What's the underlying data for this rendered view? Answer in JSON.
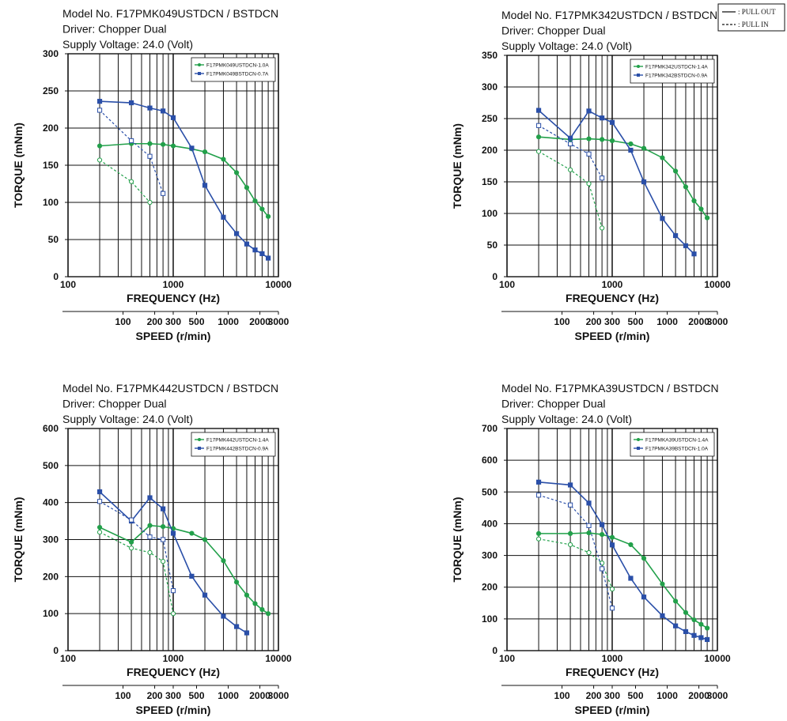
{
  "legend_box": {
    "pull_out": ": PULL OUT",
    "pull_in": ": PULL IN"
  },
  "colors": {
    "green": "#22a04a",
    "blue": "#2a4fa8",
    "grid": "#111111"
  },
  "chart_data": [
    {
      "type": "line",
      "header": [
        "Model No. F17PMK049USTDCN / BSTDCN",
        "Driver: Chopper Dual",
        "Supply Voltage: 24.0 (Volt)"
      ],
      "xlabel": "FREQUENCY (Hz)",
      "x2label": "SPEED (r/min)",
      "ylabel": "TORQUE (mNm)",
      "x_scale": "log",
      "xlim": [
        100,
        10000
      ],
      "ylim": [
        0,
        300
      ],
      "yticks": [
        0,
        50,
        100,
        150,
        200,
        250,
        300
      ],
      "xticks": [
        100,
        1000,
        10000
      ],
      "speed_ticks": [
        100,
        200,
        300,
        500,
        1000,
        2000,
        3000
      ],
      "legend_position": "top-right",
      "series": [
        {
          "name": "F17PMK049USTDCN-1.0A",
          "color": "green",
          "style": "pull-out",
          "x": [
            200,
            400,
            600,
            800,
            1000,
            1500,
            2000,
            3000,
            4000,
            5000,
            6000,
            7000,
            8000
          ],
          "y": [
            176,
            179,
            179,
            178,
            176,
            172,
            168,
            158,
            140,
            120,
            102,
            91,
            81
          ]
        },
        {
          "name": "F17PMK049BSTDCN-0.7A",
          "color": "blue",
          "style": "pull-out",
          "x": [
            200,
            400,
            600,
            800,
            1000,
            1500,
            2000,
            3000,
            4000,
            5000,
            6000,
            7000,
            8000
          ],
          "y": [
            236,
            234,
            227,
            223,
            214,
            173,
            123,
            80,
            58,
            44,
            36,
            31,
            25
          ]
        },
        {
          "color": "green",
          "style": "pull-in",
          "x": [
            200,
            400,
            600
          ],
          "y": [
            157,
            128,
            100
          ]
        },
        {
          "color": "blue",
          "style": "pull-in",
          "x": [
            200,
            400,
            600,
            800
          ],
          "y": [
            224,
            183,
            162,
            112
          ]
        }
      ]
    },
    {
      "type": "line",
      "header": [
        "Model No. F17PMK342USTDCN / BSTDCN",
        "Driver: Chopper Dual",
        "Supply Voltage: 24.0 (Volt)"
      ],
      "xlabel": "FREQUENCY (Hz)",
      "x2label": "SPEED (r/min)",
      "ylabel": "TORQUE (mNm)",
      "x_scale": "log",
      "xlim": [
        100,
        10000
      ],
      "ylim": [
        0,
        350
      ],
      "yticks": [
        0,
        50,
        100,
        150,
        200,
        250,
        300,
        350
      ],
      "xticks": [
        100,
        1000,
        10000
      ],
      "speed_ticks": [
        100,
        200,
        300,
        500,
        1000,
        2000,
        3000
      ],
      "legend_position": "top-right",
      "series": [
        {
          "name": "F17PMK342USTDCN-1.4A",
          "color": "green",
          "style": "pull-out",
          "x": [
            200,
            400,
            600,
            800,
            1000,
            1500,
            2000,
            3000,
            4000,
            5000,
            6000,
            7000,
            8000
          ],
          "y": [
            221,
            217,
            218,
            217,
            215,
            210,
            203,
            188,
            167,
            142,
            120,
            107,
            93
          ]
        },
        {
          "name": "F17PMK342BSTDCN-0.9A",
          "color": "blue",
          "style": "pull-out",
          "x": [
            200,
            400,
            600,
            800,
            1000,
            1500,
            2000,
            3000,
            4000,
            5000,
            6000
          ],
          "y": [
            263,
            219,
            262,
            251,
            244,
            200,
            150,
            92,
            65,
            49,
            36
          ]
        },
        {
          "color": "green",
          "style": "pull-in",
          "x": [
            200,
            400,
            600,
            800
          ],
          "y": [
            198,
            169,
            147,
            77
          ]
        },
        {
          "color": "blue",
          "style": "pull-in",
          "x": [
            200,
            400,
            600,
            800
          ],
          "y": [
            239,
            210,
            194,
            156
          ]
        }
      ]
    },
    {
      "type": "line",
      "header": [
        "Model No. F17PMK442USTDCN / BSTDCN",
        "Driver: Chopper Dual",
        "Supply Voltage: 24.0 (Volt)"
      ],
      "xlabel": "FREQUENCY (Hz)",
      "x2label": "SPEED (r/min)",
      "ylabel": "TORQUE (mNm)",
      "x_scale": "log",
      "xlim": [
        100,
        10000
      ],
      "ylim": [
        0,
        600
      ],
      "yticks": [
        0,
        100,
        200,
        300,
        400,
        500,
        600
      ],
      "xticks": [
        100,
        1000,
        10000
      ],
      "speed_ticks": [
        100,
        200,
        300,
        500,
        1000,
        2000,
        3000
      ],
      "legend_position": "top-right",
      "series": [
        {
          "name": "F17PMK442USTDCN-1.4A",
          "color": "green",
          "style": "pull-out",
          "x": [
            200,
            400,
            600,
            800,
            1000,
            1500,
            2000,
            3000,
            4000,
            5000,
            6000,
            7000,
            8000
          ],
          "y": [
            333,
            293,
            338,
            335,
            330,
            317,
            300,
            243,
            185,
            150,
            127,
            111,
            100
          ]
        },
        {
          "name": "F17PMK442BSTDCN-0.9A",
          "color": "blue",
          "style": "pull-out",
          "x": [
            200,
            400,
            600,
            800,
            1000,
            1500,
            2000,
            3000,
            4000,
            5000
          ],
          "y": [
            429,
            350,
            413,
            383,
            317,
            201,
            150,
            93,
            65,
            48
          ]
        },
        {
          "color": "green",
          "style": "pull-in",
          "x": [
            200,
            400,
            600,
            800,
            1000
          ],
          "y": [
            320,
            277,
            265,
            241,
            100
          ]
        },
        {
          "color": "blue",
          "style": "pull-in",
          "x": [
            200,
            400,
            600,
            800,
            1000
          ],
          "y": [
            403,
            353,
            307,
            300,
            162
          ]
        }
      ]
    },
    {
      "type": "line",
      "header": [
        "Model No. F17PMKA39USTDCN / BSTDCN",
        "Driver: Chopper Dual",
        "Supply Voltage: 24.0 (Volt)"
      ],
      "xlabel": "FREQUENCY (Hz)",
      "x2label": "SPEED (r/min)",
      "ylabel": "TORQUE (mNm)",
      "x_scale": "log",
      "xlim": [
        100,
        10000
      ],
      "ylim": [
        0,
        700
      ],
      "yticks": [
        0,
        100,
        200,
        300,
        400,
        500,
        600,
        700
      ],
      "xticks": [
        100,
        1000,
        10000
      ],
      "speed_ticks": [
        100,
        200,
        300,
        500,
        1000,
        2000,
        3000
      ],
      "legend_position": "top-right",
      "series": [
        {
          "name": "F17PMKA39USTDCN-1.4A",
          "color": "green",
          "style": "pull-out",
          "x": [
            200,
            400,
            600,
            800,
            1000,
            1500,
            2000,
            3000,
            4000,
            5000,
            6000,
            7000,
            8000
          ],
          "y": [
            369,
            369,
            371,
            366,
            357,
            334,
            291,
            210,
            156,
            120,
            97,
            83,
            71
          ]
        },
        {
          "name": "F17PMKA39BSTDCN-1.0A",
          "color": "blue",
          "style": "pull-out",
          "x": [
            200,
            400,
            600,
            800,
            1000,
            1500,
            2000,
            3000,
            4000,
            5000,
            6000,
            7000,
            8000
          ],
          "y": [
            531,
            522,
            465,
            397,
            333,
            228,
            169,
            110,
            78,
            60,
            48,
            41,
            35
          ]
        },
        {
          "color": "green",
          "style": "pull-in",
          "x": [
            200,
            400,
            600,
            800,
            1000
          ],
          "y": [
            352,
            334,
            309,
            276,
            194
          ]
        },
        {
          "color": "blue",
          "style": "pull-in",
          "x": [
            200,
            400,
            600,
            800,
            1000
          ],
          "y": [
            490,
            459,
            394,
            258,
            134
          ]
        }
      ]
    }
  ]
}
